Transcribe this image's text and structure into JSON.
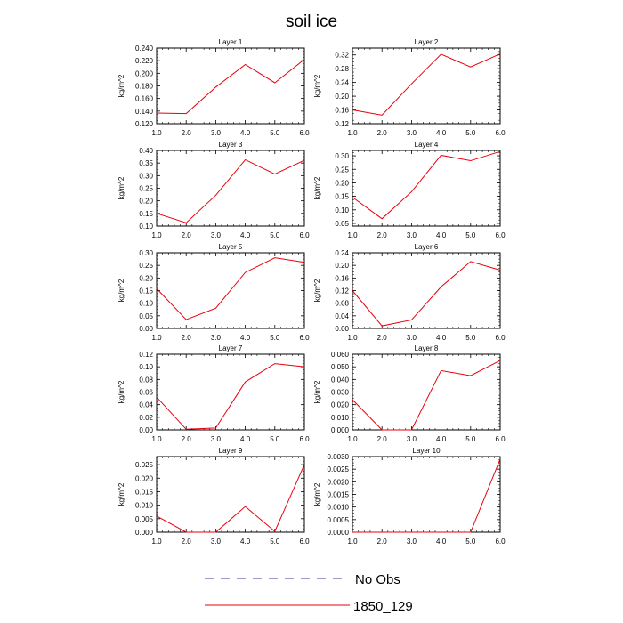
{
  "figure": {
    "title": "soil ice",
    "legend": [
      {
        "label": "No Obs",
        "color": "#3a3aa0",
        "style": "dashed"
      },
      {
        "label": "1850_129",
        "color": "#e8000b",
        "style": "solid"
      }
    ]
  },
  "chart_data": [
    {
      "type": "line",
      "title": "Layer 1",
      "ylabel": "kg/m^2",
      "x": [
        1,
        2,
        3,
        4,
        5,
        6
      ],
      "xticks": [
        "1.0",
        "2.0",
        "3.0",
        "4.0",
        "5.0",
        "6.0"
      ],
      "xlim": [
        1,
        6
      ],
      "ylim": [
        0.12,
        0.24
      ],
      "yticks": [
        "0.120",
        "0.140",
        "0.160",
        "0.180",
        "0.200",
        "0.220",
        "0.240"
      ],
      "series": [
        {
          "name": "1850_129",
          "color": "#e8000b",
          "values": [
            0.137,
            0.136,
            0.178,
            0.214,
            0.185,
            0.222
          ]
        }
      ]
    },
    {
      "type": "line",
      "title": "Layer 2",
      "ylabel": "kg/m^2",
      "x": [
        1,
        2,
        3,
        4,
        5,
        6
      ],
      "xticks": [
        "1.0",
        "2.0",
        "3.0",
        "4.0",
        "5.0",
        "6.0"
      ],
      "xlim": [
        1,
        6
      ],
      "ylim": [
        0.12,
        0.34
      ],
      "yticks": [
        "0.12",
        "0.16",
        "0.20",
        "0.24",
        "0.28",
        "0.32"
      ],
      "series": [
        {
          "name": "1850_129",
          "color": "#e8000b",
          "values": [
            0.16,
            0.145,
            0.236,
            0.322,
            0.285,
            0.323
          ]
        }
      ]
    },
    {
      "type": "line",
      "title": "Layer 3",
      "ylabel": "kg/m^2",
      "x": [
        1,
        2,
        3,
        4,
        5,
        6
      ],
      "xticks": [
        "1.0",
        "2.0",
        "3.0",
        "4.0",
        "5.0",
        "6.0"
      ],
      "xlim": [
        1,
        6
      ],
      "ylim": [
        0.1,
        0.4
      ],
      "yticks": [
        "0.10",
        "0.15",
        "0.20",
        "0.25",
        "0.30",
        "0.35",
        "0.40"
      ],
      "series": [
        {
          "name": "1850_129",
          "color": "#e8000b",
          "values": [
            0.15,
            0.113,
            0.222,
            0.363,
            0.306,
            0.361
          ]
        }
      ]
    },
    {
      "type": "line",
      "title": "Layer 4",
      "ylabel": "kg/m^2",
      "x": [
        1,
        2,
        3,
        4,
        5,
        6
      ],
      "xticks": [
        "1.0",
        "2.0",
        "3.0",
        "4.0",
        "5.0",
        "6.0"
      ],
      "xlim": [
        1,
        6
      ],
      "ylim": [
        0.04,
        0.32
      ],
      "yticks": [
        "0.05",
        "0.10",
        "0.15",
        "0.20",
        "0.25",
        "0.30"
      ],
      "series": [
        {
          "name": "1850_129",
          "color": "#e8000b",
          "values": [
            0.147,
            0.067,
            0.167,
            0.302,
            0.282,
            0.316
          ]
        }
      ]
    },
    {
      "type": "line",
      "title": "Layer 5",
      "ylabel": "kg/m^2",
      "x": [
        1,
        2,
        3,
        4,
        5,
        6
      ],
      "xticks": [
        "1.0",
        "2.0",
        "3.0",
        "4.0",
        "5.0",
        "6.0"
      ],
      "xlim": [
        1,
        6
      ],
      "ylim": [
        0,
        0.3
      ],
      "yticks": [
        "0.00",
        "0.05",
        "0.10",
        "0.15",
        "0.20",
        "0.25",
        "0.30"
      ],
      "series": [
        {
          "name": "1850_129",
          "color": "#e8000b",
          "values": [
            0.158,
            0.035,
            0.08,
            0.222,
            0.28,
            0.262
          ]
        }
      ]
    },
    {
      "type": "line",
      "title": "Layer 6",
      "ylabel": "kg/m^2",
      "x": [
        1,
        2,
        3,
        4,
        5,
        6
      ],
      "xticks": [
        "1.0",
        "2.0",
        "3.0",
        "4.0",
        "5.0",
        "6.0"
      ],
      "xlim": [
        1,
        6
      ],
      "ylim": [
        0,
        0.24
      ],
      "yticks": [
        "0.00",
        "0.04",
        "0.08",
        "0.12",
        "0.16",
        "0.20",
        "0.24"
      ],
      "series": [
        {
          "name": "1850_129",
          "color": "#e8000b",
          "values": [
            0.12,
            0.008,
            0.027,
            0.132,
            0.212,
            0.185
          ]
        }
      ]
    },
    {
      "type": "line",
      "title": "Layer 7",
      "ylabel": "kg/m^2",
      "x": [
        1,
        2,
        3,
        4,
        5,
        6
      ],
      "xticks": [
        "1.0",
        "2.0",
        "3.0",
        "4.0",
        "5.0",
        "6.0"
      ],
      "xlim": [
        1,
        6
      ],
      "ylim": [
        0,
        0.12
      ],
      "yticks": [
        "0.00",
        "0.02",
        "0.04",
        "0.06",
        "0.08",
        "0.10",
        "0.12"
      ],
      "series": [
        {
          "name": "1850_129",
          "color": "#e8000b",
          "values": [
            0.052,
            0.001,
            0.003,
            0.076,
            0.105,
            0.1
          ]
        }
      ]
    },
    {
      "type": "line",
      "title": "Layer 8",
      "ylabel": "kg/m^2",
      "x": [
        1,
        2,
        3,
        4,
        5,
        6
      ],
      "xticks": [
        "1.0",
        "2.0",
        "3.0",
        "4.0",
        "5.0",
        "6.0"
      ],
      "xlim": [
        1,
        6
      ],
      "ylim": [
        0,
        0.06
      ],
      "yticks": [
        "0.000",
        "0.010",
        "0.020",
        "0.030",
        "0.040",
        "0.050",
        "0.060"
      ],
      "series": [
        {
          "name": "1850_129",
          "color": "#e8000b",
          "values": [
            0.024,
            0,
            0,
            0.047,
            0.043,
            0.055
          ]
        }
      ]
    },
    {
      "type": "line",
      "title": "Layer 9",
      "ylabel": "kg/m^2",
      "x": [
        1,
        2,
        3,
        4,
        5,
        6
      ],
      "xticks": [
        "1.0",
        "2.0",
        "3.0",
        "4.0",
        "5.0",
        "6.0"
      ],
      "xlim": [
        1,
        6
      ],
      "ylim": [
        0,
        0.028
      ],
      "yticks": [
        "0.000",
        "0.005",
        "0.010",
        "0.015",
        "0.020",
        "0.025"
      ],
      "series": [
        {
          "name": "1850_129",
          "color": "#e8000b",
          "values": [
            0.006,
            0,
            0,
            0.0095,
            0.0003,
            0.025
          ]
        }
      ]
    },
    {
      "type": "line",
      "title": "Layer 10",
      "ylabel": "kg/m^2",
      "x": [
        1,
        2,
        3,
        4,
        5,
        6
      ],
      "xticks": [
        "1.0",
        "2.0",
        "3.0",
        "4.0",
        "5.0",
        "6.0"
      ],
      "xlim": [
        1,
        6
      ],
      "ylim": [
        0,
        0.003
      ],
      "yticks": [
        "0.0000",
        "0.0005",
        "0.0010",
        "0.0015",
        "0.0020",
        "0.0025",
        "0.0030"
      ],
      "series": [
        {
          "name": "1850_129",
          "color": "#e8000b",
          "values": [
            0,
            0,
            0,
            0,
            0,
            0.0029
          ]
        }
      ]
    }
  ]
}
